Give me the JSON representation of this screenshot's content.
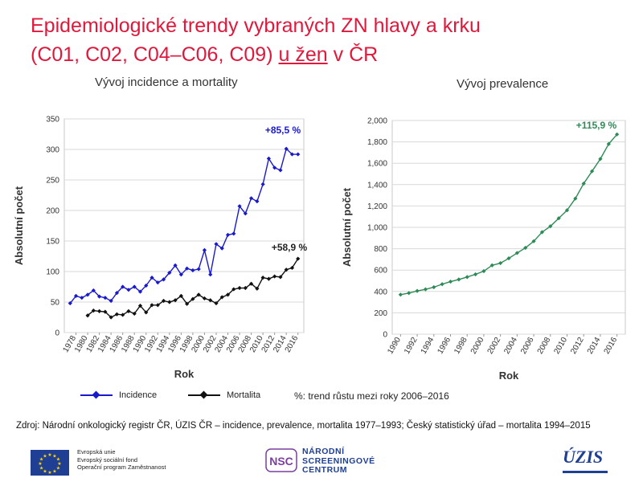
{
  "title": {
    "line1": "Epidemiologické trendy vybraných ZN hlavy a krku",
    "line2_prefix": "(C01, C02, C04–C06, C09)",
    "line2_underlined": "u žen",
    "line2_suffix": "v ČR"
  },
  "chart_data": [
    {
      "type": "line",
      "title": "Vývoj incidence a mortality",
      "xlabel": "Rok",
      "ylabel": "Absolutní počet",
      "ylim": [
        0,
        350
      ],
      "yticks": [
        0,
        50,
        100,
        150,
        200,
        250,
        300,
        350
      ],
      "xticks": [
        1978,
        1980,
        1982,
        1984,
        1986,
        1988,
        1990,
        1992,
        1994,
        1996,
        1998,
        2000,
        2002,
        2004,
        2006,
        2008,
        2010,
        2012,
        2014,
        2016
      ],
      "grid": true,
      "series": [
        {
          "name": "Incidence",
          "color": "#1a1acc",
          "x": [
            1977,
            1978,
            1979,
            1980,
            1981,
            1982,
            1983,
            1984,
            1985,
            1986,
            1987,
            1988,
            1989,
            1990,
            1991,
            1992,
            1993,
            1994,
            1995,
            1996,
            1997,
            1998,
            1999,
            2000,
            2001,
            2002,
            2003,
            2004,
            2005,
            2006,
            2007,
            2008,
            2009,
            2010,
            2011,
            2012,
            2013,
            2014,
            2015,
            2016
          ],
          "values": [
            48,
            60,
            57,
            62,
            69,
            59,
            57,
            52,
            65,
            75,
            70,
            75,
            67,
            77,
            90,
            82,
            87,
            98,
            110,
            95,
            105,
            102,
            104,
            135,
            95,
            145,
            138,
            160,
            162,
            207,
            195,
            220,
            215,
            243,
            285,
            270,
            266,
            301,
            292,
            292
          ],
          "annotation": "+85,5 %"
        },
        {
          "name": "Mortalita",
          "color": "#111111",
          "x": [
            1980,
            1981,
            1982,
            1983,
            1984,
            1985,
            1986,
            1987,
            1988,
            1989,
            1990,
            1991,
            1992,
            1993,
            1994,
            1995,
            1996,
            1997,
            1998,
            1999,
            2000,
            2001,
            2002,
            2003,
            2004,
            2005,
            2006,
            2007,
            2008,
            2009,
            2010,
            2011,
            2012,
            2013,
            2014,
            2015,
            2016
          ],
          "values": [
            28,
            36,
            35,
            34,
            25,
            30,
            29,
            35,
            31,
            44,
            33,
            45,
            45,
            52,
            50,
            53,
            60,
            47,
            55,
            62,
            56,
            53,
            48,
            58,
            62,
            71,
            73,
            73,
            80,
            72,
            90,
            88,
            92,
            91,
            103,
            106,
            121
          ],
          "annotation": "+58,9 %"
        }
      ]
    },
    {
      "type": "line",
      "title": "Vývoj prevalence",
      "xlabel": "Rok",
      "ylabel": "Absolutní počet",
      "ylim": [
        0,
        2000
      ],
      "yticks": [
        0,
        200,
        400,
        600,
        800,
        1000,
        1200,
        1400,
        1600,
        1800,
        2000
      ],
      "ytick_labels": [
        "0",
        "200",
        "400",
        "600",
        "800",
        "1,000",
        "1,200",
        "1,400",
        "1,600",
        "1,800",
        "2,000"
      ],
      "xticks": [
        1990,
        1992,
        1994,
        1996,
        1998,
        2000,
        2002,
        2004,
        2006,
        2008,
        2010,
        2012,
        2014,
        2016
      ],
      "grid": true,
      "series": [
        {
          "color": "#2e8b57",
          "x": [
            1990,
            1991,
            1992,
            1993,
            1994,
            1995,
            1996,
            1997,
            1998,
            1999,
            2000,
            2001,
            2002,
            2003,
            2004,
            2005,
            2006,
            2007,
            2008,
            2009,
            2010,
            2011,
            2012,
            2013,
            2014,
            2015,
            2016
          ],
          "values": [
            370,
            385,
            405,
            420,
            440,
            468,
            492,
            512,
            535,
            560,
            590,
            645,
            665,
            710,
            760,
            808,
            870,
            955,
            1010,
            1085,
            1160,
            1270,
            1410,
            1525,
            1640,
            1780,
            1870
          ],
          "annotation": "+115,9 %"
        }
      ]
    }
  ],
  "legend": {
    "incidence": "Incidence",
    "mortality": "Mortalita"
  },
  "note": "%: trend růstu mezi roky 2006–2016",
  "source": "Zdroj: Národní onkologický registr ČR, ÚZIS ČR – incidence, prevalence, mortalita 1977–1993; Český statistický úřad – mortalita 1994–2015",
  "footer": {
    "eu_lines": [
      "Evropská unie",
      "Evropský sociální fond",
      "Operační program Zaměstnanost"
    ],
    "nsc_lines": [
      "NÁRODNÍ",
      "SCREENINGOVÉ",
      "CENTRUM"
    ],
    "nsc_logo_text": "NSC",
    "uzis_text": "ÚZIS"
  },
  "colors": {
    "title": "#e0183c",
    "incidence": "#1a1acc",
    "mortality": "#111111",
    "prevalence": "#2e8b57",
    "brand_blue": "#1f3f94",
    "gridline": "#d9d9d9"
  }
}
